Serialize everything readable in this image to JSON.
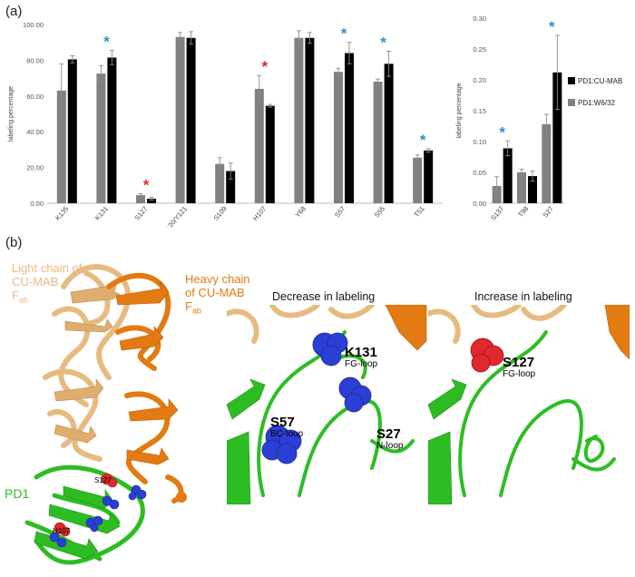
{
  "panels": {
    "a": "(a)",
    "b": "(b)"
  },
  "chart_data": [
    {
      "type": "bar",
      "ylabel": "labeling percentage",
      "ylim": [
        0,
        100
      ],
      "yticks": [
        "0.00",
        "20.00",
        "40.00",
        "60.00",
        "80.00",
        "100.00"
      ],
      "categories": [
        "K135",
        "K131",
        "S127",
        "S118/T120/Y121",
        "S109",
        "H107",
        "Y68",
        "S57",
        "S55",
        "T51"
      ],
      "series": [
        {
          "name": "PD1:W6/32",
          "color": "#808080",
          "values": [
            63.0,
            72.5,
            4.5,
            93.0,
            22.0,
            64.0,
            92.5,
            73.5,
            68.0,
            25.5
          ],
          "errors": [
            15.0,
            4.5,
            0.8,
            2.5,
            3.5,
            7.5,
            4.0,
            2.0,
            1.5,
            1.5
          ]
        },
        {
          "name": "PD1:CU-MAB",
          "color": "#000000",
          "values": [
            80.5,
            81.5,
            2.5,
            92.5,
            18.0,
            54.5,
            92.5,
            84.0,
            78.0,
            29.5
          ],
          "errors": [
            2.0,
            4.0,
            0.8,
            3.5,
            4.5,
            0.8,
            3.0,
            6.0,
            7.0,
            1.0
          ]
        }
      ],
      "markers": [
        {
          "category": "K131",
          "symbol": "*",
          "color": "#2f8fce"
        },
        {
          "category": "S127",
          "symbol": "*",
          "color": "#e0282e"
        },
        {
          "category": "H107",
          "symbol": "*",
          "color": "#e0282e"
        },
        {
          "category": "S57",
          "symbol": "*",
          "color": "#2f8fce"
        },
        {
          "category": "S55",
          "symbol": "*",
          "color": "#2f8fce"
        },
        {
          "category": "T51",
          "symbol": "*",
          "color": "#2f8fce"
        }
      ],
      "grid": false
    },
    {
      "type": "bar",
      "ylabel": "labeling percentage",
      "ylim": [
        0,
        0.3
      ],
      "yticks": [
        "0.00",
        "0.05",
        "0.10",
        "0.15",
        "0.20",
        "0.25",
        "0.30"
      ],
      "categories": [
        "S137",
        "T98",
        "S27"
      ],
      "series": [
        {
          "name": "PD1:W6/32",
          "color": "#808080",
          "values": [
            0.028,
            0.05,
            0.128
          ],
          "errors": [
            0.015,
            0.005,
            0.016
          ]
        },
        {
          "name": "PD1:CU-MAB",
          "color": "#000000",
          "values": [
            0.089,
            0.044,
            0.212
          ],
          "errors": [
            0.012,
            0.008,
            0.06
          ]
        }
      ],
      "markers": [
        {
          "category": "S137",
          "symbol": "*",
          "color": "#2f8fce"
        },
        {
          "category": "S27",
          "symbol": "*",
          "color": "#2f8fce"
        }
      ],
      "legend": {
        "placement": "right",
        "entries": [
          "PD1:CU-MAB",
          "PD1:W6/32"
        ]
      },
      "grid": false
    }
  ],
  "structure": {
    "light_chain_lines": [
      "Light chain of",
      "CU-MAB",
      "F",
      "ab"
    ],
    "heavy_chain_lines": [
      "Heavy chain",
      "of CU-MAB",
      "F",
      "ab"
    ],
    "pd1_label": "PD1",
    "overview_residues": [
      "S127",
      "H107"
    ],
    "colors": {
      "light_chain": "#e7ba80",
      "heavy_chain": "#e37a12",
      "pd1": "#2dbd23",
      "decrease": "#2b3fd6",
      "increase": "#e0282e"
    }
  },
  "decrease_view": {
    "title": "Decrease in labeling",
    "residues": [
      {
        "name": "K131",
        "loop": "FG-loop"
      },
      {
        "name": "S57",
        "loop": "BC-loop"
      },
      {
        "name": "S27",
        "loop": "N-loop"
      }
    ]
  },
  "increase_view": {
    "title": "Increase in labeling",
    "residues": [
      {
        "name": "S127",
        "loop": "FG-loop"
      }
    ]
  }
}
